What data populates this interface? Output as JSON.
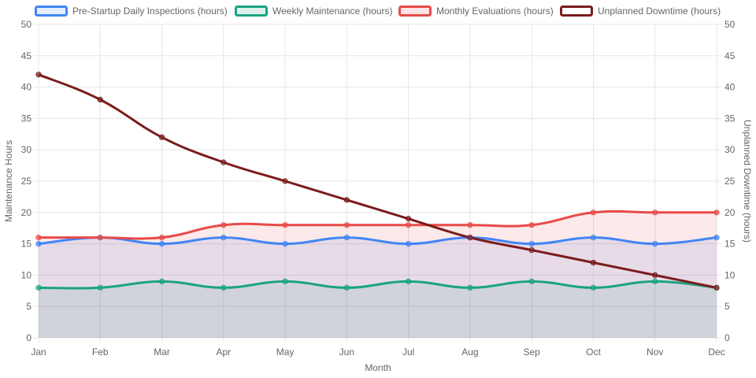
{
  "chart_data": {
    "type": "line",
    "categories": [
      "Jan",
      "Feb",
      "Mar",
      "Apr",
      "May",
      "Jun",
      "Jul",
      "Aug",
      "Sep",
      "Oct",
      "Nov",
      "Dec"
    ],
    "xlabel": "Month",
    "ylabel": "Maintenance Hours",
    "ylabel_right": "Unplanned Downtime (hours)",
    "ylim": [
      0,
      50
    ],
    "ylim_right": [
      0,
      50
    ],
    "yticks": [
      0,
      5,
      10,
      15,
      20,
      25,
      30,
      35,
      40,
      45,
      50
    ],
    "grid": true,
    "legend_position": "top",
    "series": [
      {
        "name": "Pre-Startup Daily Inspections (hours)",
        "axis": "left",
        "color": "#4285f4",
        "fill": "rgba(66,133,244,0.12)",
        "values": [
          15,
          16,
          15,
          16,
          15,
          16,
          15,
          16,
          15,
          16,
          15,
          16
        ]
      },
      {
        "name": "Weekly Maintenance (hours)",
        "axis": "left",
        "color": "#1aa383",
        "fill": "rgba(26,163,131,0.12)",
        "values": [
          8,
          8,
          9,
          8,
          9,
          8,
          9,
          8,
          9,
          8,
          9,
          8
        ]
      },
      {
        "name": "Monthly Evaluations (hours)",
        "axis": "left",
        "color": "#e84a4a",
        "fill": "rgba(232,74,74,0.12)",
        "values": [
          16,
          16,
          16,
          18,
          18,
          18,
          18,
          18,
          18,
          20,
          20,
          20
        ]
      },
      {
        "name": "Unplanned Downtime (hours)",
        "axis": "right",
        "color": "#7b1c1c",
        "fill": null,
        "values": [
          42,
          38,
          32,
          28,
          25,
          22,
          19,
          16,
          14,
          12,
          10,
          8
        ]
      }
    ]
  }
}
